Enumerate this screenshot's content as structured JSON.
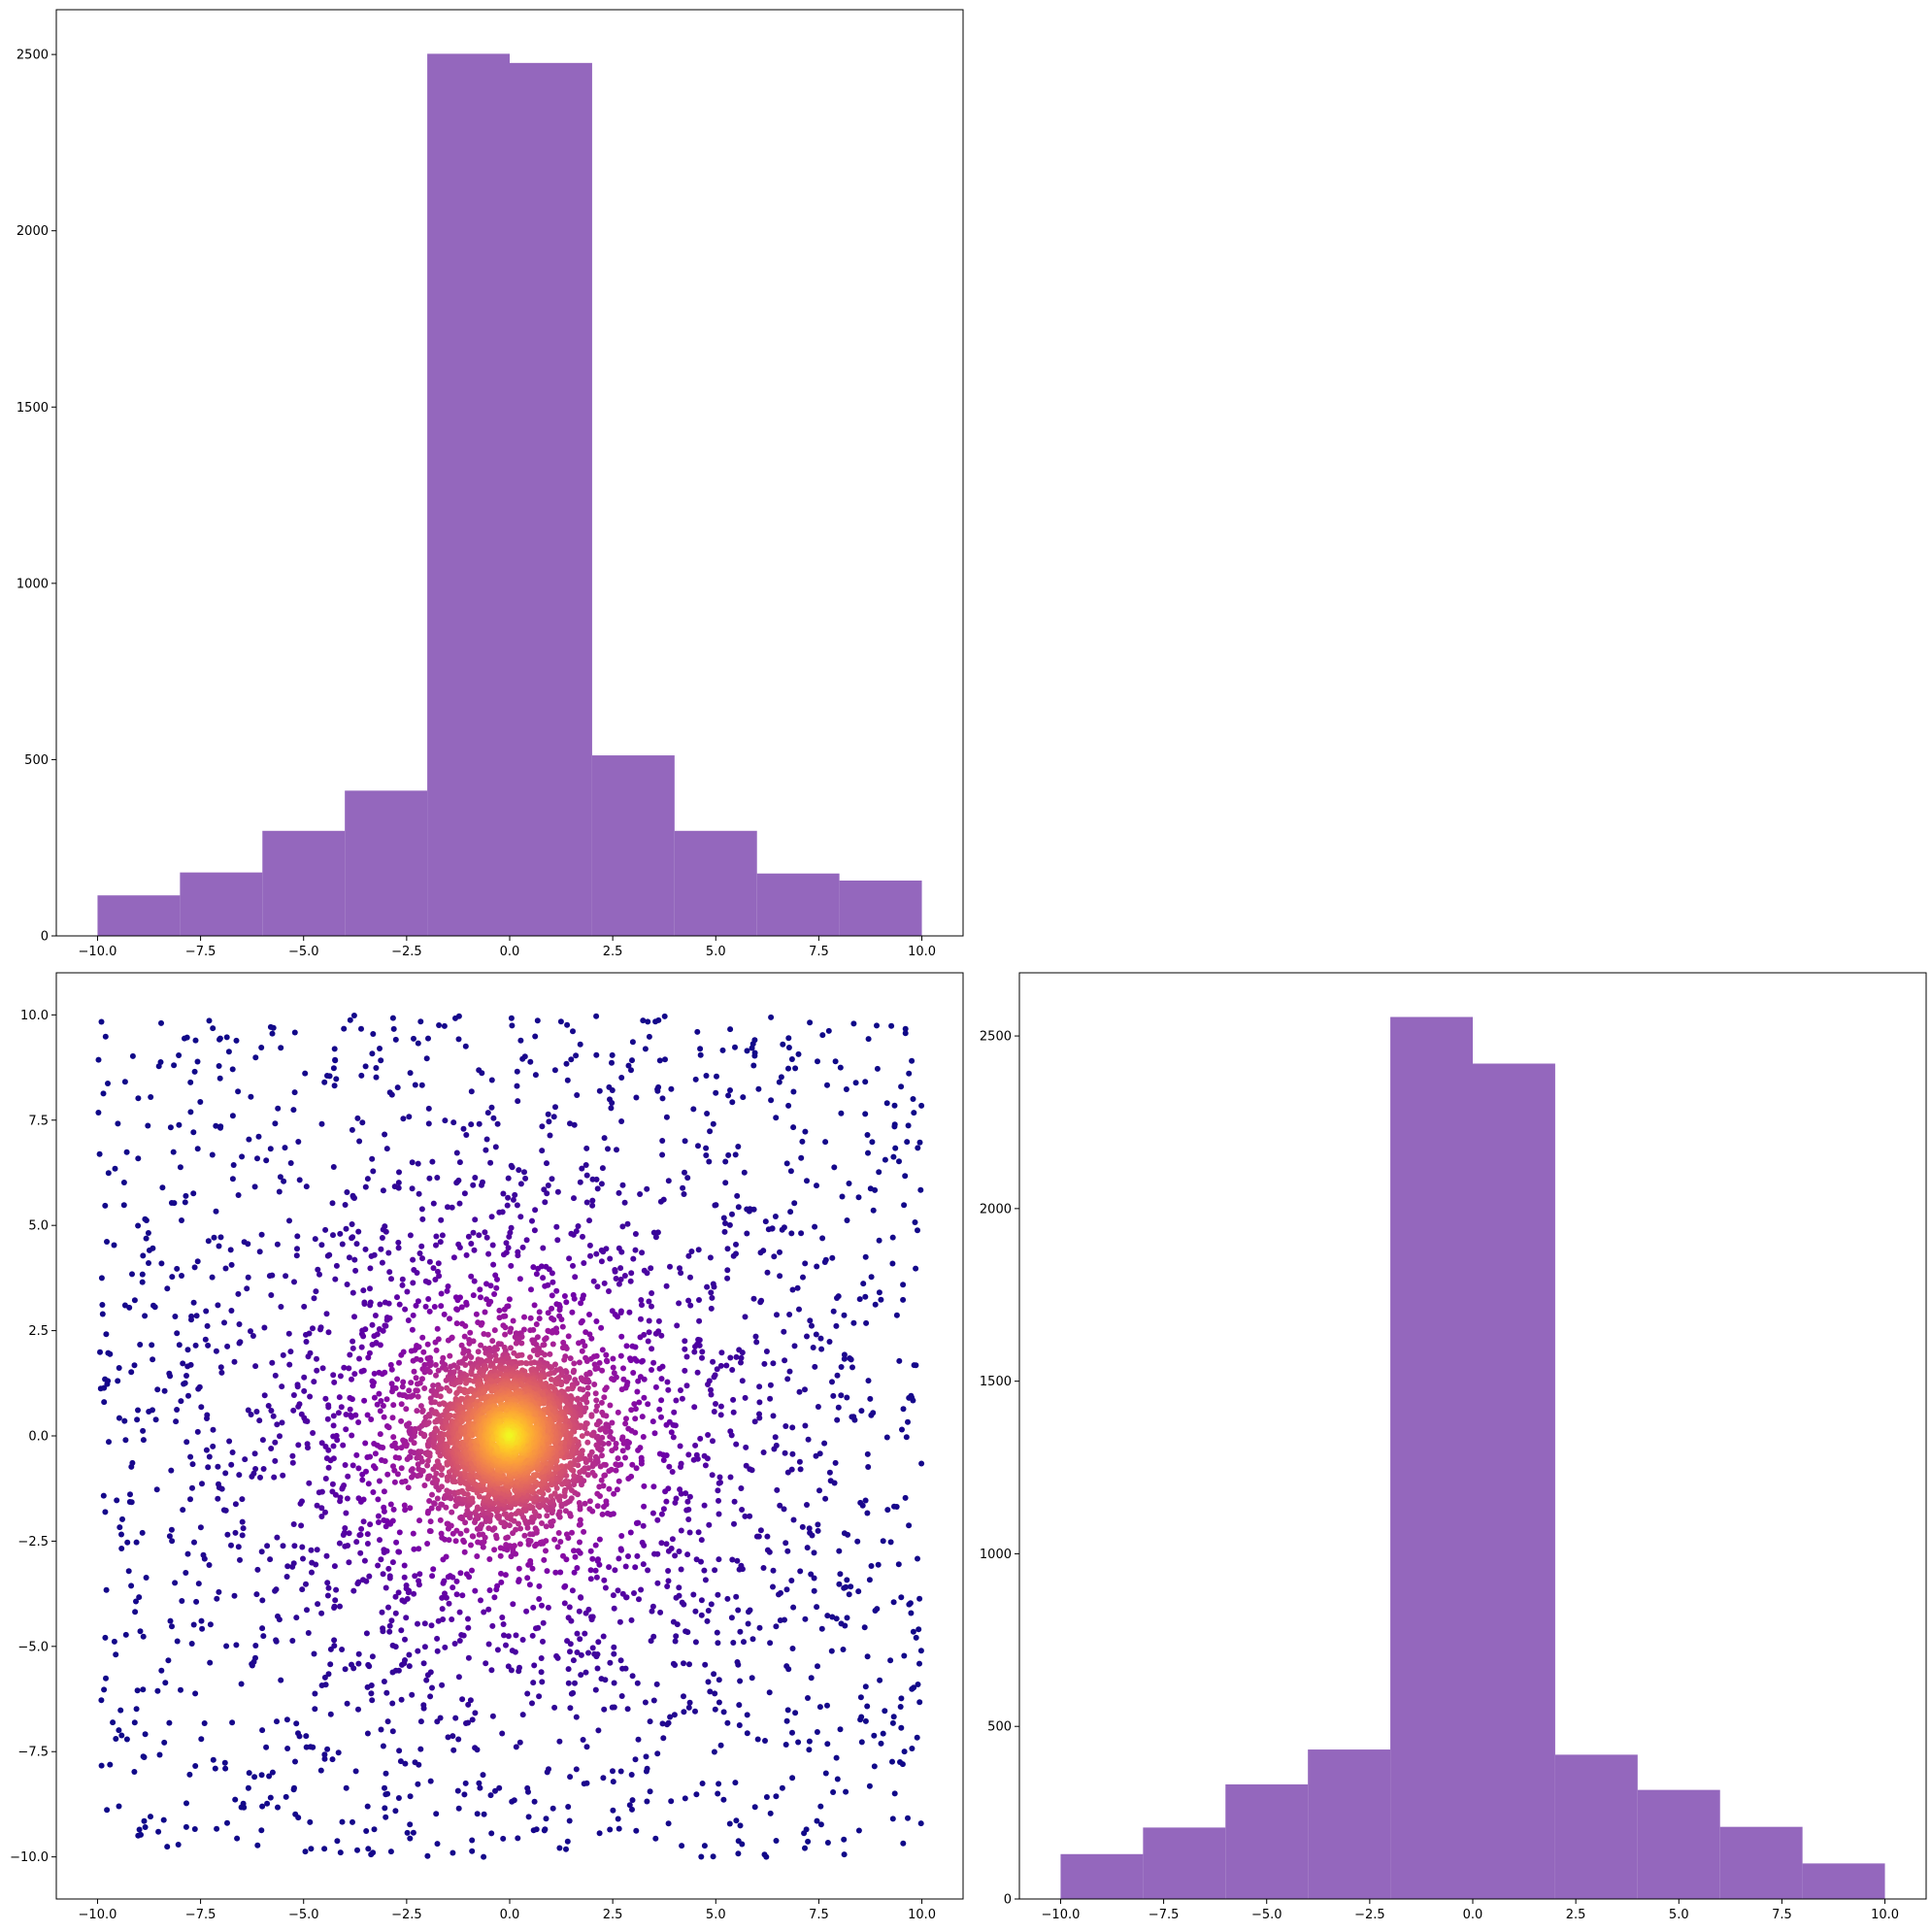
{
  "chart_data": [
    {
      "type": "bar",
      "subtype": "histogram",
      "bin_edges": [
        -10,
        -8,
        -6,
        -4,
        -2,
        0,
        2,
        4,
        6,
        8,
        10
      ],
      "values": [
        115,
        180,
        298,
        412,
        2502,
        2476,
        512,
        298,
        177,
        157
      ],
      "color": "#9467bd",
      "xlim": [
        -11,
        11
      ],
      "ylim": [
        0,
        2627
      ],
      "xticks": [
        -10.0,
        -7.5,
        -5.0,
        -2.5,
        0.0,
        2.5,
        5.0,
        7.5,
        10.0
      ],
      "xtick_labels": [
        "−10.0",
        "−7.5",
        "−5.0",
        "−2.5",
        "0.0",
        "2.5",
        "5.0",
        "7.5",
        "10.0"
      ],
      "yticks": [
        0,
        500,
        1000,
        1500,
        2000,
        2500
      ],
      "ytick_labels": [
        "0",
        "500",
        "1000",
        "1500",
        "2000",
        "2500"
      ],
      "grid": false
    },
    {
      "type": "scatter",
      "n_points": 6000,
      "description_of_distribution": "dense gaussian core at origin (sd about 1) plus uniform points over [-10, 10] x [-10, 10]",
      "colormap": "plasma",
      "color_encodes": "point density (high at center)",
      "marker_color_low": "#0d0887",
      "marker_color_high": "#f0f921",
      "xlim": [
        -11,
        11
      ],
      "ylim": [
        -11,
        11
      ],
      "xticks": [
        -10.0,
        -7.5,
        -5.0,
        -2.5,
        0.0,
        2.5,
        5.0,
        7.5,
        10.0
      ],
      "xtick_labels": [
        "−10.0",
        "−7.5",
        "−5.0",
        "−2.5",
        "0.0",
        "2.5",
        "5.0",
        "7.5",
        "10.0"
      ],
      "yticks": [
        -10.0,
        -7.5,
        -5.0,
        -2.5,
        0.0,
        2.5,
        5.0,
        7.5,
        10.0
      ],
      "ytick_labels": [
        "−10.0",
        "−7.5",
        "−5.0",
        "−2.5",
        "0.0",
        "2.5",
        "5.0",
        "7.5",
        "10.0"
      ],
      "grid": false
    },
    {
      "type": "bar",
      "subtype": "histogram",
      "bin_edges": [
        -10,
        -8,
        -6,
        -4,
        -2,
        0,
        2,
        4,
        6,
        8,
        10
      ],
      "values": [
        130,
        207,
        332,
        433,
        2555,
        2420,
        418,
        316,
        209,
        103
      ],
      "color": "#9467bd",
      "xlim": [
        -11,
        11
      ],
      "ylim": [
        0,
        2683
      ],
      "xticks": [
        -10.0,
        -7.5,
        -5.0,
        -2.5,
        0.0,
        2.5,
        5.0,
        7.5,
        10.0
      ],
      "xtick_labels": [
        "−10.0",
        "−7.5",
        "−5.0",
        "−2.5",
        "0.0",
        "2.5",
        "5.0",
        "7.5",
        "10.0"
      ],
      "yticks": [
        0,
        500,
        1000,
        1500,
        2000,
        2500
      ],
      "ytick_labels": [
        "0",
        "500",
        "1000",
        "1500",
        "2000",
        "2500"
      ],
      "grid": false
    }
  ]
}
